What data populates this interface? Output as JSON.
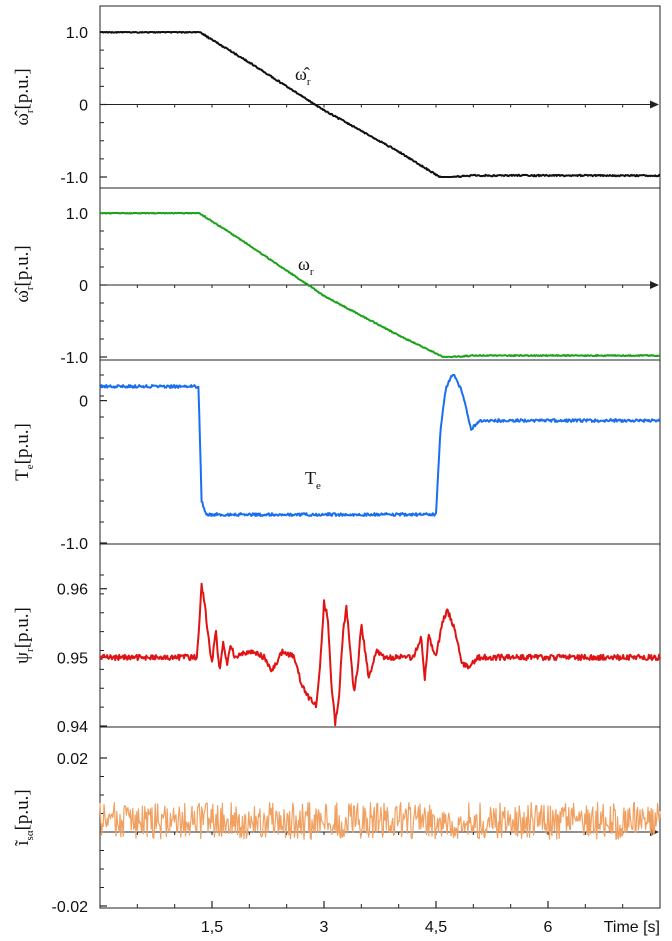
{
  "chart_data": [
    {
      "type": "line",
      "ylabel": "ω̂r [p.u.]",
      "ylabel_main": "ω̂",
      "ylabel_sub": "r",
      "annotation_main": "ω̂",
      "annotation_sub": "r",
      "ylim": [
        -1.0,
        1.0
      ],
      "yticks": [
        {
          "v": 1.0,
          "label": "1.0"
        },
        {
          "v": 0,
          "label": "0"
        },
        {
          "v": -1.0,
          "label": "-1.0"
        }
      ],
      "zero_line": true,
      "series": [
        {
          "color": "#111111",
          "x": [
            0,
            1.33,
            2.0,
            3.0,
            4.0,
            4.55,
            4.62,
            4.72,
            5.0,
            7.5
          ],
          "y": [
            1.0,
            1.0,
            0.58,
            -0.08,
            -0.65,
            -1.0,
            -1.04,
            -1.0,
            -0.98,
            -0.98
          ],
          "noise": 0.01
        }
      ]
    },
    {
      "type": "line",
      "ylabel": "ω̂r [p.u.]",
      "ylabel_main": "ω̂",
      "ylabel_sub": "r",
      "annotation_main": "ω",
      "annotation_sub": "r",
      "ylim": [
        -1.0,
        1.0
      ],
      "yticks": [
        {
          "v": 1.0,
          "label": "1.0"
        },
        {
          "v": 0,
          "label": "0"
        },
        {
          "v": -1.0,
          "label": "-1.0"
        }
      ],
      "zero_line": true,
      "series": [
        {
          "color": "#1aa31a",
          "x": [
            0,
            1.33,
            2.0,
            3.0,
            4.0,
            4.6,
            4.72,
            5.0,
            7.5
          ],
          "y": [
            1.0,
            1.0,
            0.55,
            -0.15,
            -0.7,
            -1.0,
            -1.0,
            -0.98,
            -0.98
          ],
          "noise": 0.008
        }
      ]
    },
    {
      "type": "line",
      "ylabel": "Te [p.u.]",
      "ylabel_main": "T",
      "ylabel_sub": "e",
      "annotation_main": "T",
      "annotation_sub": "e",
      "ylim": [
        -1.0,
        0.18
      ],
      "yticks": [
        {
          "v": 0,
          "label": "0"
        },
        {
          "v": -1.0,
          "label": "-1.0"
        }
      ],
      "zero_line": false,
      "series": [
        {
          "color": "#1a6ef0",
          "x": [
            0,
            1.32,
            1.36,
            1.42,
            4.5,
            4.56,
            4.63,
            4.73,
            4.85,
            4.97,
            5.1,
            7.5
          ],
          "y": [
            0.1,
            0.1,
            -0.7,
            -0.8,
            -0.8,
            -0.2,
            0.08,
            0.2,
            0.06,
            -0.2,
            -0.14,
            -0.14
          ],
          "noise": 0.01
        }
      ]
    },
    {
      "type": "line",
      "ylabel": "ψr [p.u.]",
      "ylabel_main": "ψ",
      "ylabel_sub": "r",
      "ylim": [
        0.94,
        0.962
      ],
      "yticks": [
        {
          "v": 0.96,
          "label": "0.96"
        },
        {
          "v": 0.95,
          "label": "0.95"
        },
        {
          "v": 0.94,
          "label": "0.94"
        }
      ],
      "zero_line": false,
      "series": [
        {
          "color": "#e01414",
          "x": [
            0,
            1.3,
            1.36,
            1.4,
            1.45,
            1.5,
            1.55,
            1.6,
            1.65,
            1.7,
            1.75,
            1.8,
            2.0,
            2.2,
            2.3,
            2.45,
            2.6,
            2.7,
            2.8,
            2.9,
            2.95,
            3.0,
            3.05,
            3.1,
            3.15,
            3.2,
            3.25,
            3.3,
            3.35,
            3.4,
            3.45,
            3.5,
            3.55,
            3.6,
            3.7,
            3.8,
            4.0,
            4.2,
            4.3,
            4.35,
            4.4,
            4.5,
            4.58,
            4.65,
            4.75,
            4.85,
            4.95,
            5.05,
            5.2,
            7.5
          ],
          "y": [
            0.95,
            0.95,
            0.9605,
            0.958,
            0.953,
            0.949,
            0.954,
            0.948,
            0.952,
            0.949,
            0.952,
            0.95,
            0.951,
            0.95,
            0.948,
            0.951,
            0.95,
            0.946,
            0.944,
            0.943,
            0.949,
            0.958,
            0.956,
            0.946,
            0.9405,
            0.944,
            0.953,
            0.9575,
            0.951,
            0.945,
            0.948,
            0.955,
            0.951,
            0.947,
            0.951,
            0.95,
            0.95,
            0.95,
            0.953,
            0.947,
            0.953,
            0.95,
            0.955,
            0.957,
            0.954,
            0.949,
            0.9485,
            0.95,
            0.95,
            0.95
          ],
          "noise": 0.0004
        }
      ]
    },
    {
      "type": "line",
      "ylabel": "ĩsα [p.u.]",
      "ylabel_main": "ĩ",
      "ylabel_sub": "sα",
      "ylim": [
        -0.02,
        0.02
      ],
      "yticks": [
        {
          "v": 0.02,
          "label": "0.02"
        },
        {
          "v": -0.02,
          "label": "-0.02"
        }
      ],
      "zero_line": true,
      "series": [
        {
          "color": "#f0a060",
          "x": [
            0,
            7.5
          ],
          "y": [
            0.003,
            0.003
          ],
          "noise": 0.005
        }
      ]
    }
  ],
  "x_axis": {
    "xlim": [
      0,
      7.5
    ],
    "ticks": [
      {
        "v": 1.5,
        "label": "1,5"
      },
      {
        "v": 3,
        "label": "3"
      },
      {
        "v": 4.5,
        "label": "4,5"
      },
      {
        "v": 6,
        "label": "6"
      }
    ],
    "xlabel": "Time [s]"
  }
}
